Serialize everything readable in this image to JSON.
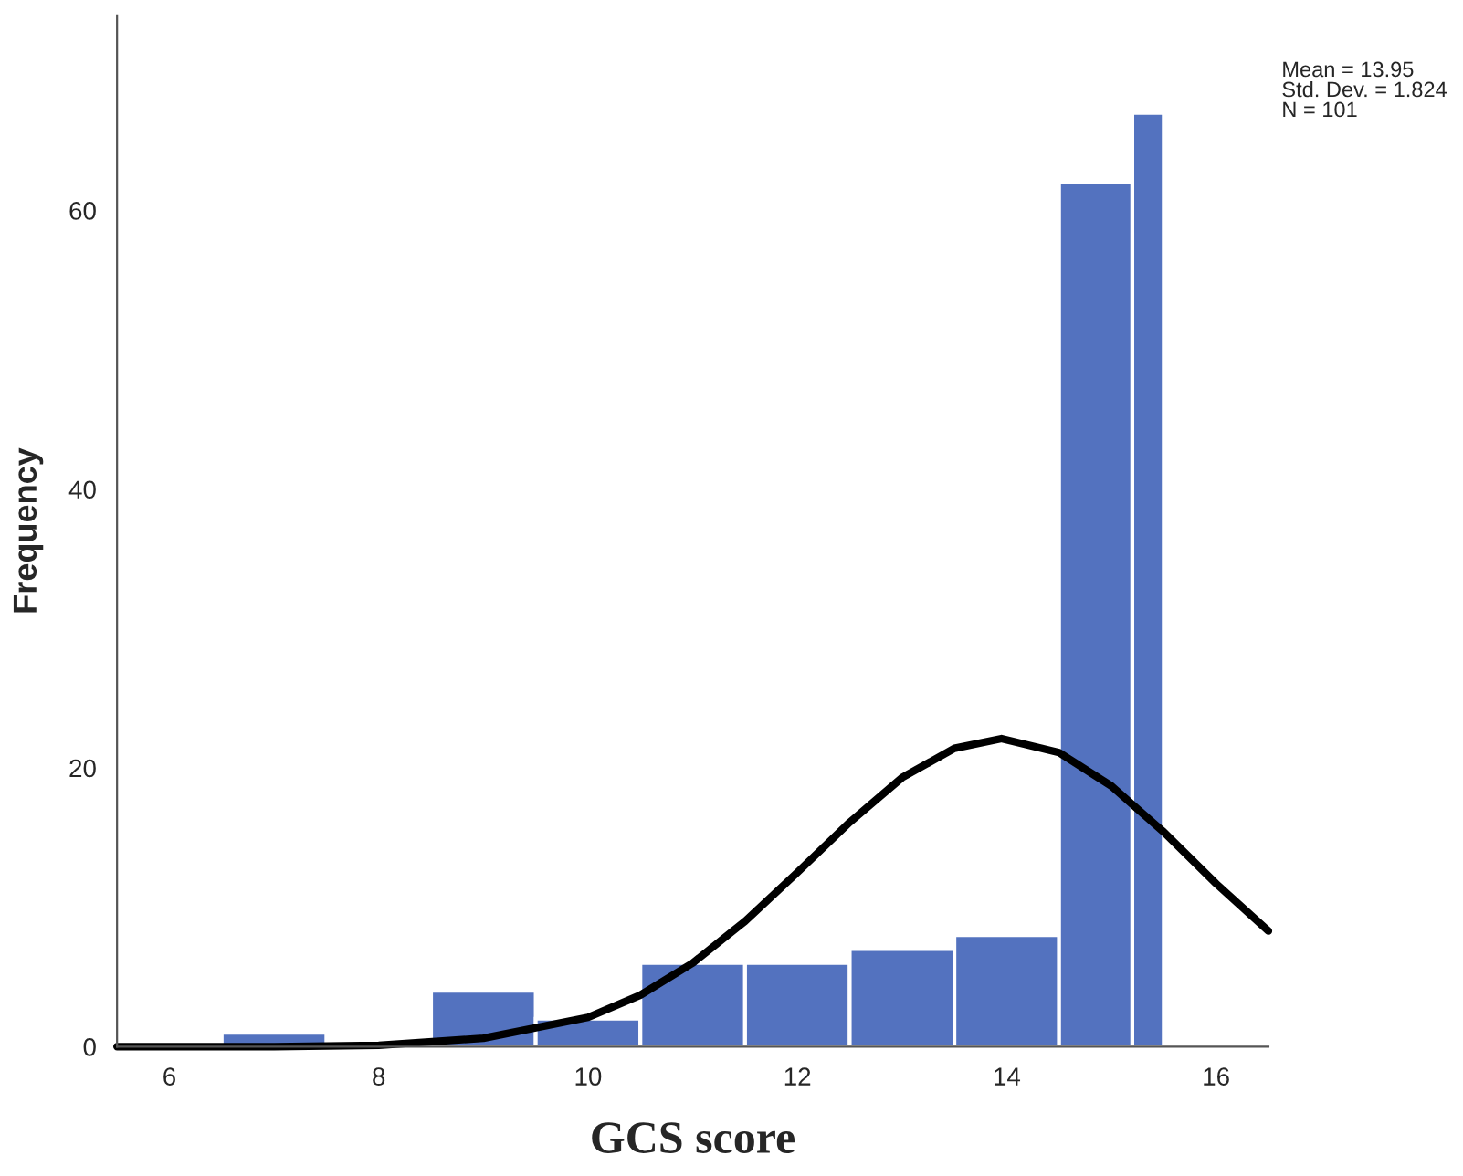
{
  "chart_data": {
    "type": "histogram",
    "xlabel": "GCS score",
    "ylabel": "Frequency",
    "bins": [
      6.5,
      7.5,
      8.5,
      9.5,
      10.5,
      11.5,
      12.5,
      13.5,
      14.5,
      15.2,
      15.5
    ],
    "values": [
      1,
      0,
      4,
      2,
      6,
      6,
      7,
      8,
      62,
      67
    ],
    "color": "#5372bf",
    "series": [
      {
        "type": "line",
        "color": "#000000",
        "x": [
          5.5,
          7,
          8,
          9,
          10,
          10.5,
          11,
          11.5,
          12,
          12.5,
          13,
          13.5,
          13.95,
          14.5,
          15,
          15.5,
          16,
          16.5
        ],
        "values": [
          0,
          0,
          0.1,
          0.6,
          2.1,
          3.7,
          6,
          9,
          12.5,
          16.1,
          19.3,
          21.4,
          22.1,
          21.1,
          18.7,
          15.4,
          11.7,
          8.3
        ]
      }
    ],
    "annotations": [
      "Mean = 13.95\nStd. Dev. = 1.824\nN = 101"
    ],
    "xlim": [
      5.5,
      16.5
    ],
    "ylim": [
      0,
      74
    ],
    "xticks": [
      6,
      8,
      10,
      12,
      14,
      16
    ],
    "yticks": [
      0,
      20,
      40,
      60
    ],
    "grid": false,
    "legend": false
  }
}
